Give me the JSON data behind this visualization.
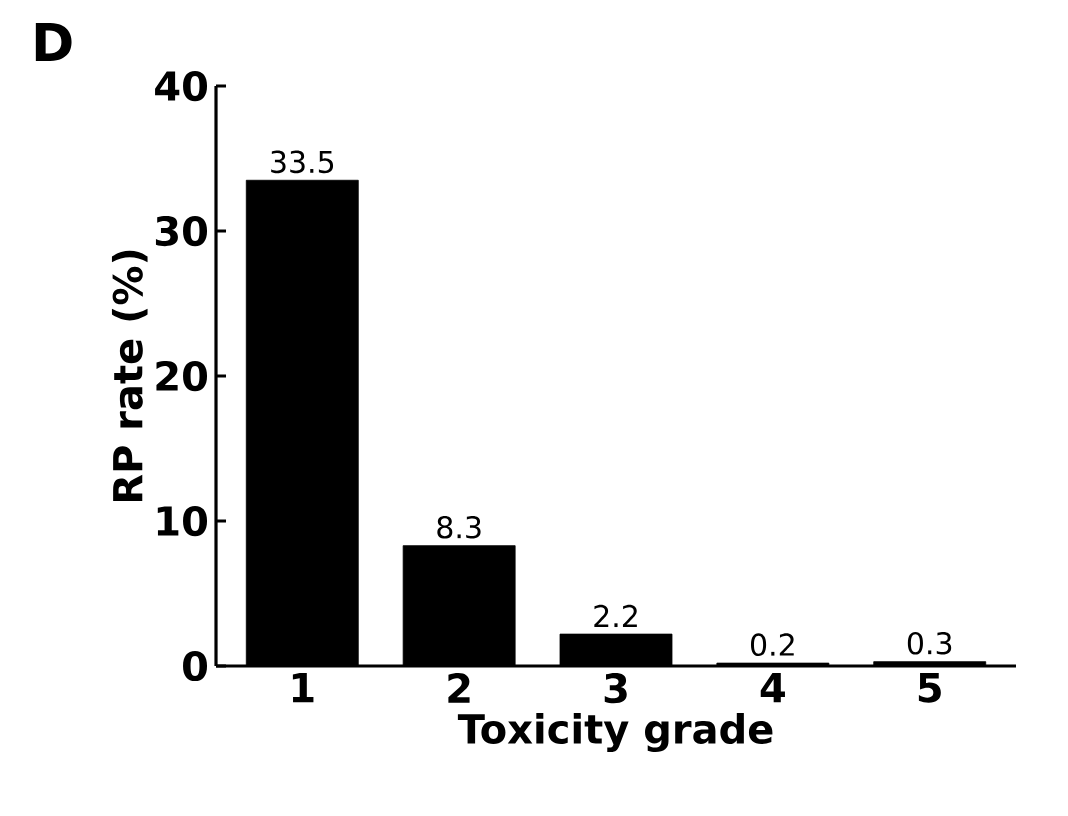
{
  "chart_data": {
    "type": "bar",
    "title": "D",
    "xlabel": "Toxicity grade",
    "ylabel": "RP rate (%)",
    "categories": [
      "1",
      "2",
      "3",
      "4",
      "5"
    ],
    "values": [
      33.5,
      8.3,
      2.2,
      0.2,
      0.3
    ],
    "color": "#000000",
    "ylim": [
      0,
      40
    ],
    "yticks": [
      0,
      10,
      20,
      30,
      40
    ],
    "data_labels": true
  }
}
